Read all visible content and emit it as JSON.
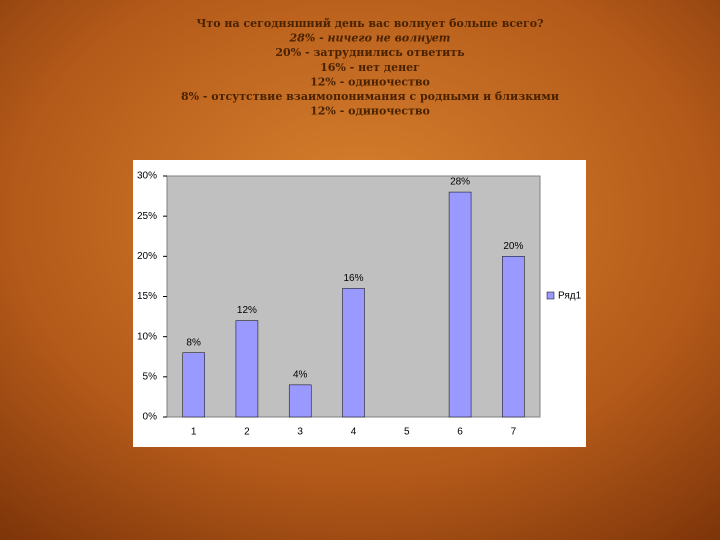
{
  "header": {
    "lines": [
      "Что на сегодняшний день вас волнует больше всего?",
      "28% - ничего не волнует",
      "20% - затруднились ответить",
      "16% - нет денег",
      "12% - одиночество",
      "8% - отсутствие взаимопонимания с родными и близкими",
      "12% - одиночество"
    ]
  },
  "chart_data": {
    "type": "bar",
    "categories": [
      "1",
      "2",
      "3",
      "4",
      "5",
      "6",
      "7"
    ],
    "series": [
      {
        "name": "Ряд1",
        "color": "#9999ff",
        "values": [
          8,
          12,
          4,
          16,
          null,
          28,
          20
        ],
        "value_labels": [
          "8%",
          "12%",
          "4%",
          "16%",
          null,
          "28%",
          "20%"
        ]
      }
    ],
    "ylim": [
      0,
      30
    ],
    "yticks": [
      {
        "value": 0,
        "label": "0%"
      },
      {
        "value": 5,
        "label": "5%"
      },
      {
        "value": 10,
        "label": "10%"
      },
      {
        "value": 15,
        "label": "15%"
      },
      {
        "value": 20,
        "label": "20%"
      },
      {
        "value": 25,
        "label": "25%"
      },
      {
        "value": 30,
        "label": "30%"
      }
    ],
    "legend": "right"
  }
}
